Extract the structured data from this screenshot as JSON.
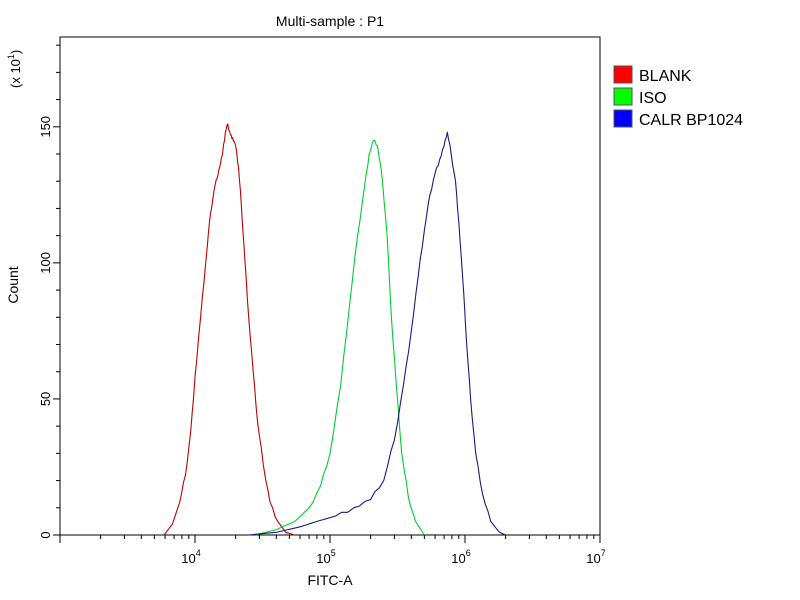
{
  "chart_data": {
    "type": "line",
    "title": "Multi-sample : P1",
    "xlabel": "FITC-A",
    "ylabel": "Count",
    "y_multiplier": "(x 10",
    "y_multiplier_exp": "1",
    "y_multiplier_close": ")",
    "x_scale": "log",
    "xlim": [
      1000,
      10000000
    ],
    "ylim": [
      0,
      183
    ],
    "x_ticks": [
      {
        "value": 10000,
        "base": "10",
        "exp": "4"
      },
      {
        "value": 100000,
        "base": "10",
        "exp": "5"
      },
      {
        "value": 1000000,
        "base": "10",
        "exp": "6"
      },
      {
        "value": 10000000,
        "base": "10",
        "exp": "7"
      }
    ],
    "y_ticks": [
      {
        "value": 0,
        "label": "0"
      },
      {
        "value": 50,
        "label": "50"
      },
      {
        "value": 100,
        "label": "100"
      },
      {
        "value": 150,
        "label": "150"
      }
    ],
    "legend_position": "top-right",
    "grid": false,
    "series": [
      {
        "name": "BLANK",
        "color": "#c00000",
        "swatch": "#ff0000",
        "points": [
          [
            5900,
            0
          ],
          [
            6800,
            4
          ],
          [
            7700,
            12
          ],
          [
            8500,
            22
          ],
          [
            9300,
            38
          ],
          [
            10000,
            58
          ],
          [
            11000,
            80
          ],
          [
            12000,
            100
          ],
          [
            13000,
            118
          ],
          [
            14000,
            128
          ],
          [
            15000,
            134
          ],
          [
            16000,
            140
          ],
          [
            16800,
            148
          ],
          [
            17500,
            151
          ],
          [
            18300,
            147
          ],
          [
            19000,
            146
          ],
          [
            20000,
            143
          ],
          [
            21000,
            135
          ],
          [
            22000,
            122
          ],
          [
            23500,
            100
          ],
          [
            25000,
            80
          ],
          [
            27000,
            60
          ],
          [
            29000,
            42
          ],
          [
            32000,
            26
          ],
          [
            36000,
            12
          ],
          [
            41000,
            5
          ],
          [
            47000,
            1
          ],
          [
            55000,
            0
          ]
        ]
      },
      {
        "name": "ISO",
        "color": "#00cc33",
        "swatch": "#00ff00",
        "points": [
          [
            28000,
            0
          ],
          [
            40000,
            2
          ],
          [
            55000,
            5
          ],
          [
            70000,
            10
          ],
          [
            85000,
            18
          ],
          [
            100000,
            30
          ],
          [
            120000,
            55
          ],
          [
            140000,
            85
          ],
          [
            160000,
            110
          ],
          [
            180000,
            128
          ],
          [
            195000,
            140
          ],
          [
            210000,
            145
          ],
          [
            225000,
            143
          ],
          [
            245000,
            130
          ],
          [
            265000,
            110
          ],
          [
            285000,
            80
          ],
          [
            310000,
            55
          ],
          [
            340000,
            30
          ],
          [
            380000,
            14
          ],
          [
            430000,
            5
          ],
          [
            500000,
            0
          ]
        ]
      },
      {
        "name": "CALR BP1024",
        "color": "#1a1a80",
        "swatch": "#0000ff",
        "points": [
          [
            25000,
            0
          ],
          [
            40000,
            1
          ],
          [
            60000,
            3
          ],
          [
            80000,
            5
          ],
          [
            110000,
            7
          ],
          [
            150000,
            10
          ],
          [
            200000,
            13
          ],
          [
            250000,
            20
          ],
          [
            300000,
            35
          ],
          [
            350000,
            55
          ],
          [
            400000,
            75
          ],
          [
            450000,
            95
          ],
          [
            500000,
            112
          ],
          [
            550000,
            125
          ],
          [
            600000,
            133
          ],
          [
            650000,
            138
          ],
          [
            700000,
            143
          ],
          [
            740000,
            148
          ],
          [
            790000,
            140
          ],
          [
            850000,
            130
          ],
          [
            900000,
            115
          ],
          [
            960000,
            95
          ],
          [
            1030000,
            70
          ],
          [
            1100000,
            50
          ],
          [
            1200000,
            30
          ],
          [
            1350000,
            15
          ],
          [
            1550000,
            5
          ],
          [
            1800000,
            1
          ],
          [
            2000000,
            0
          ]
        ]
      }
    ]
  }
}
